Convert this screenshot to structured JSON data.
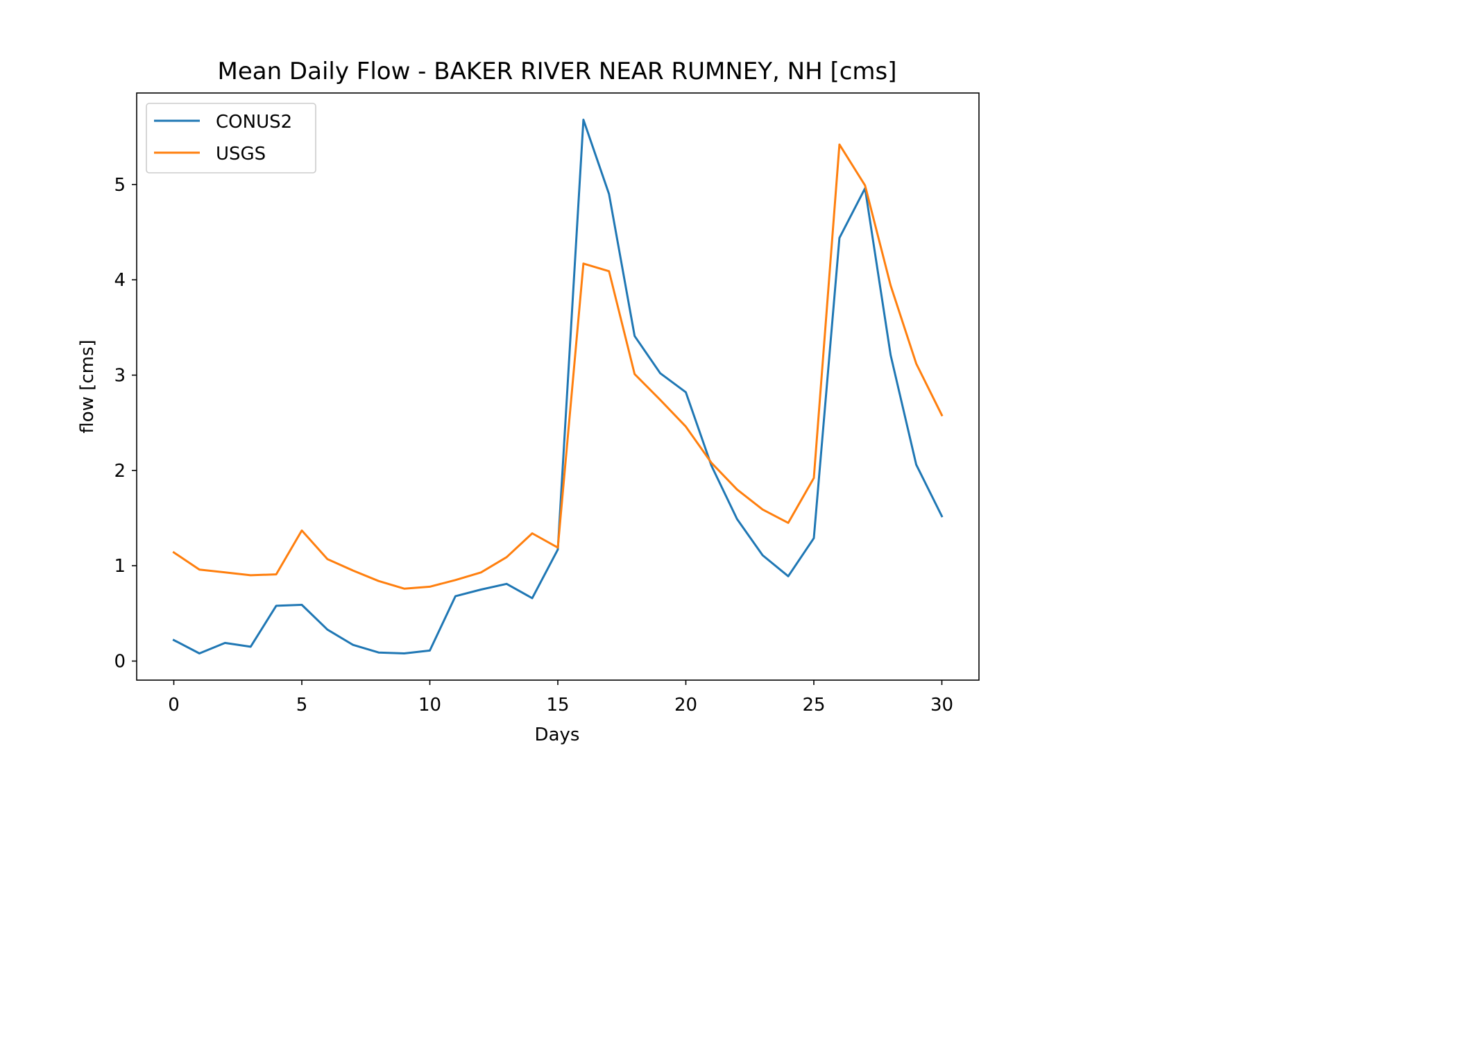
{
  "chart_data": {
    "type": "line",
    "title": "Mean Daily Flow - BAKER RIVER NEAR RUMNEY, NH [cms]",
    "xlabel": "Days",
    "ylabel": "flow [cms]",
    "xlim": [
      -1.45,
      31.45
    ],
    "ylim": [
      -0.2,
      5.96
    ],
    "xticks": [
      0,
      5,
      10,
      15,
      20,
      25,
      30
    ],
    "yticks": [
      0,
      1,
      2,
      3,
      4,
      5
    ],
    "grid": false,
    "legend_position": "upper-left",
    "x": [
      0,
      1,
      2,
      3,
      4,
      5,
      6,
      7,
      8,
      9,
      10,
      11,
      12,
      13,
      14,
      15,
      16,
      17,
      18,
      19,
      20,
      21,
      22,
      23,
      24,
      25,
      26,
      27,
      28,
      29,
      30
    ],
    "series": [
      {
        "name": "CONUS2",
        "color": "#1f77b4",
        "values": [
          0.22,
          0.08,
          0.19,
          0.15,
          0.58,
          0.59,
          0.33,
          0.17,
          0.09,
          0.08,
          0.11,
          0.68,
          0.75,
          0.81,
          0.66,
          1.17,
          5.68,
          4.9,
          3.41,
          3.02,
          2.82,
          2.05,
          1.49,
          1.11,
          0.89,
          1.29,
          4.44,
          4.96,
          3.21,
          2.06,
          1.52
        ]
      },
      {
        "name": "USGS",
        "color": "#ff7f0e",
        "values": [
          1.14,
          0.96,
          0.93,
          0.9,
          0.91,
          1.37,
          1.07,
          0.95,
          0.84,
          0.76,
          0.78,
          0.85,
          0.93,
          1.09,
          1.34,
          1.19,
          4.17,
          4.09,
          3.01,
          2.74,
          2.46,
          2.08,
          1.8,
          1.59,
          1.45,
          1.92,
          5.42,
          4.99,
          3.94,
          3.12,
          2.58
        ]
      }
    ]
  }
}
